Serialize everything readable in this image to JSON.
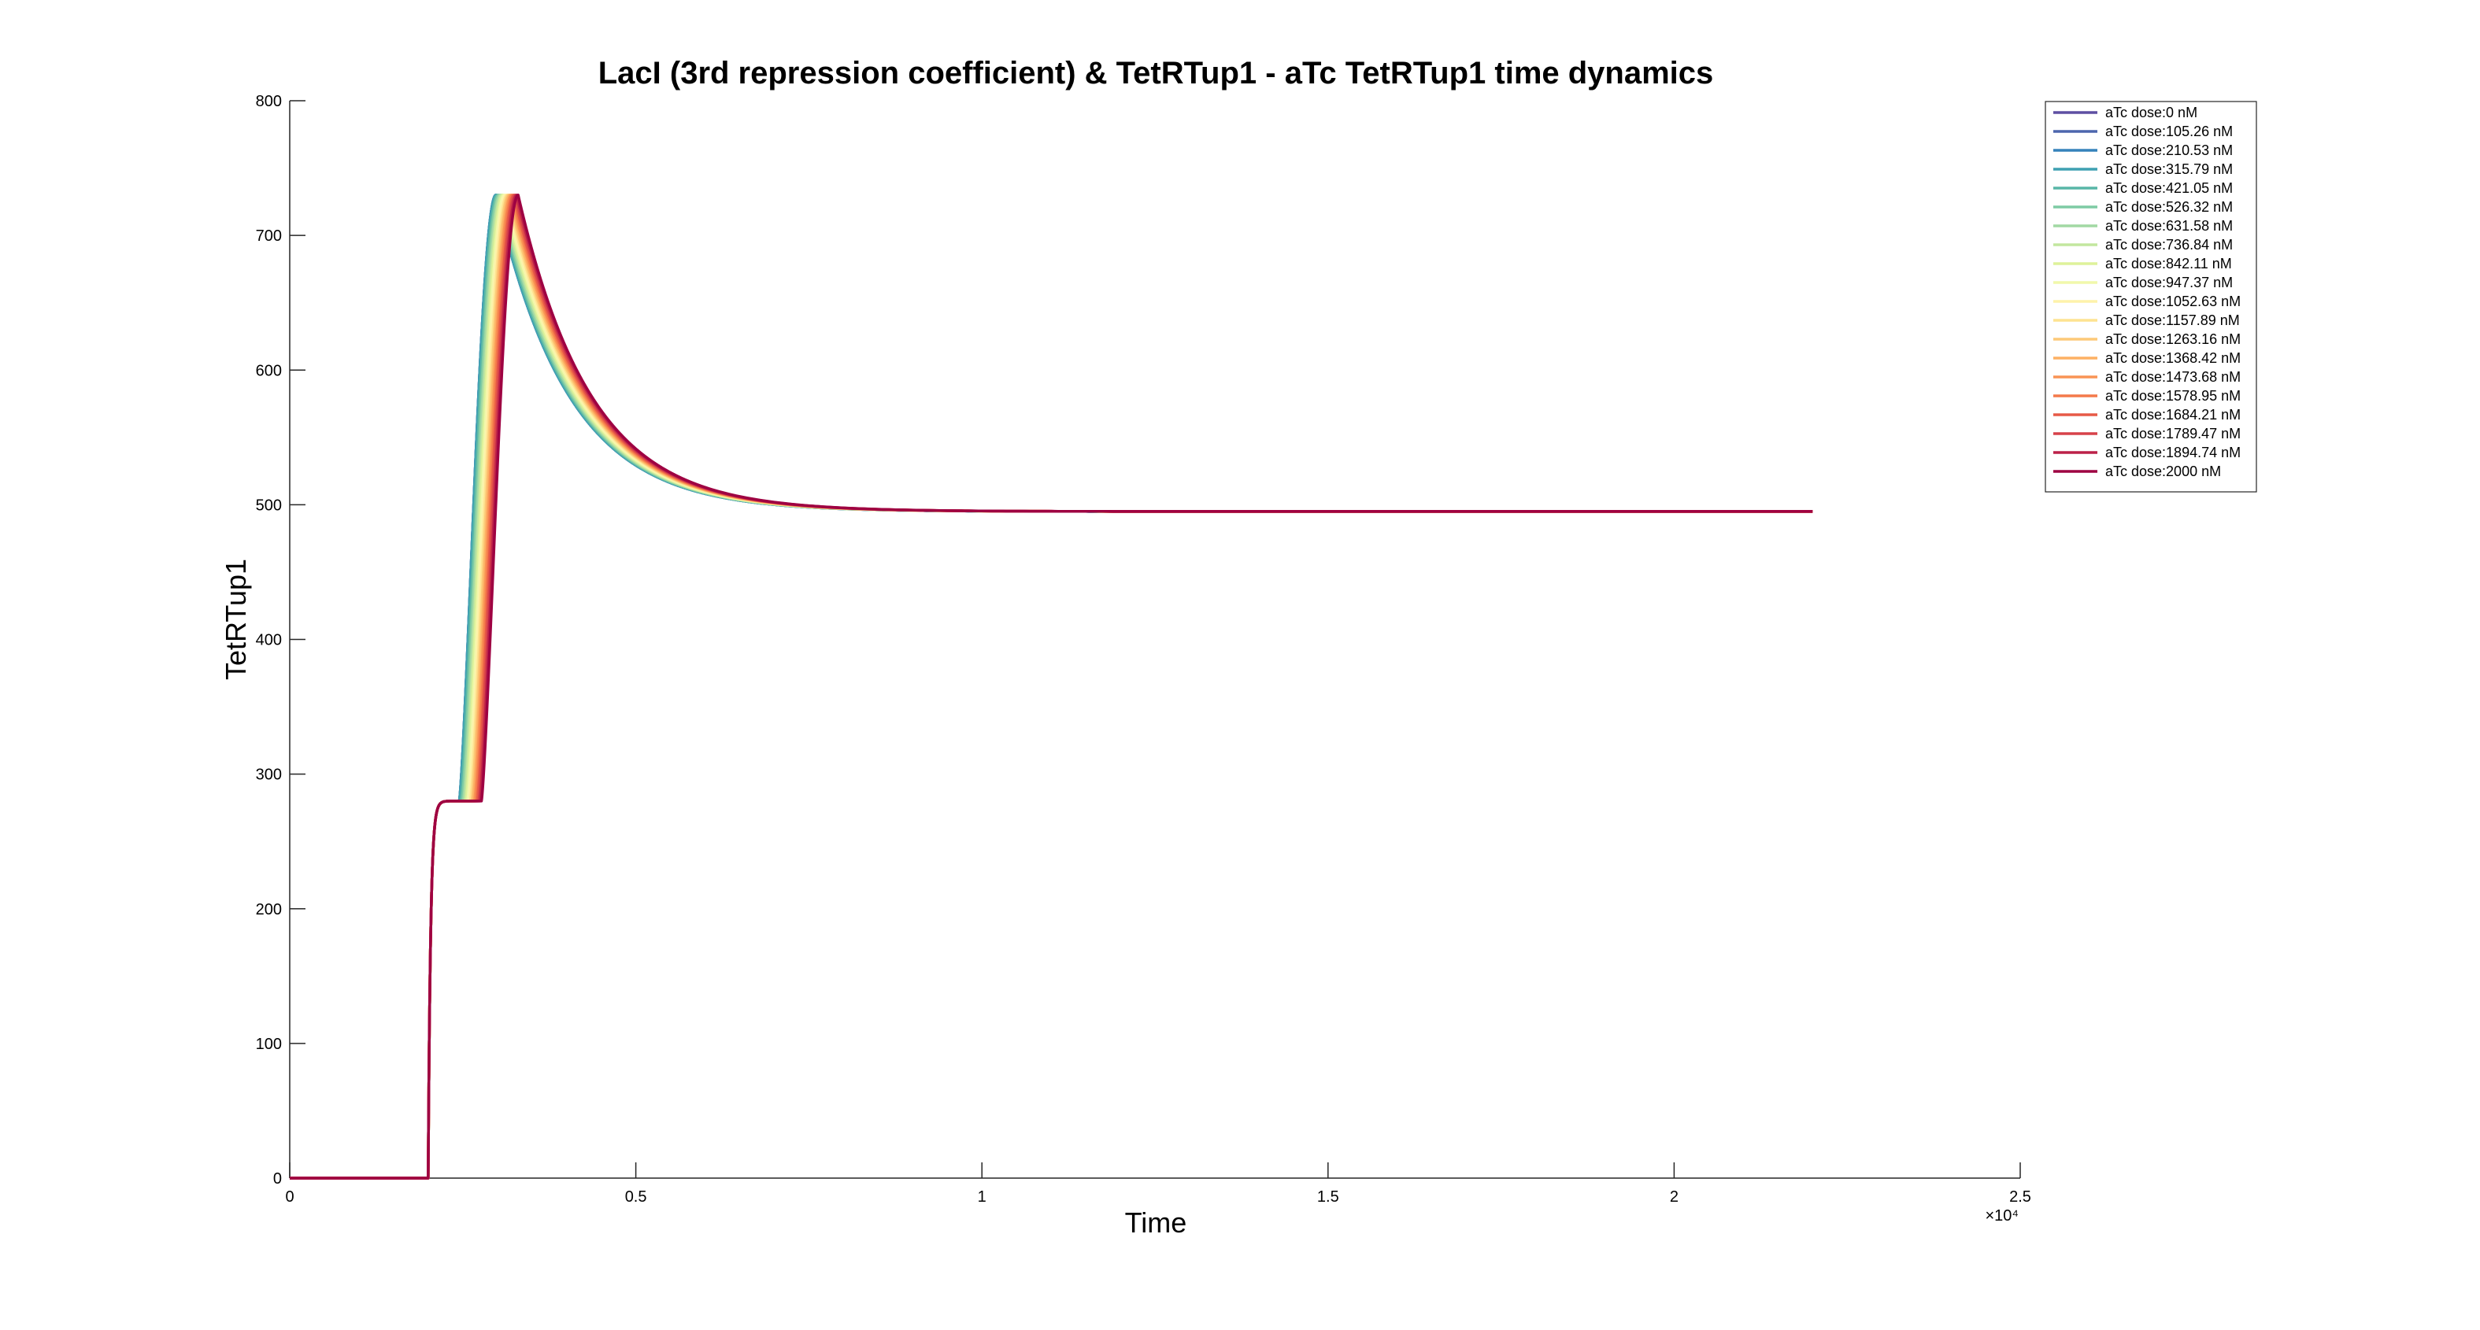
{
  "chart_data": {
    "type": "line",
    "title": "LacI (3rd repression coefficient) & TetRTup1 - aTc TetRTup1 time dynamics",
    "xlabel": "Time",
    "ylabel": "TetRTup1",
    "xlim": [
      0,
      25000
    ],
    "ylim": [
      0,
      800
    ],
    "x_exponent_label": "×10⁴",
    "x_ticks": [
      0,
      5000,
      10000,
      15000,
      20000,
      25000
    ],
    "x_tick_labels": [
      "0",
      "0.5",
      "1",
      "1.5",
      "2",
      "2.5"
    ],
    "y_ticks": [
      0,
      100,
      200,
      300,
      400,
      500,
      600,
      700,
      800
    ],
    "y_tick_labels": [
      "0",
      "100",
      "200",
      "300",
      "400",
      "500",
      "600",
      "700",
      "800"
    ],
    "grid": false,
    "box": false,
    "legend_position": "top-right",
    "x_end": 22000,
    "series": [
      {
        "name": "aTc dose:0 nM",
        "color": "#5e4fa2",
        "shift": 0
      },
      {
        "name": "aTc dose:105.26 nM",
        "color": "#4d66ad",
        "shift": 0
      },
      {
        "name": "aTc dose:210.53 nM",
        "color": "#3683bb",
        "shift": 0
      },
      {
        "name": "aTc dose:315.79 nM",
        "color": "#3fa0b2",
        "shift": 0
      },
      {
        "name": "aTc dose:421.05 nM",
        "color": "#58b6a7",
        "shift": 20
      },
      {
        "name": "aTc dose:526.32 nM",
        "color": "#7ecba4",
        "shift": 40
      },
      {
        "name": "aTc dose:631.58 nM",
        "color": "#a2d9a4",
        "shift": 60
      },
      {
        "name": "aTc dose:736.84 nM",
        "color": "#c3e79f",
        "shift": 80
      },
      {
        "name": "aTc dose:842.11 nM",
        "color": "#def29a",
        "shift": 100
      },
      {
        "name": "aTc dose:947.37 nM",
        "color": "#f1f8ab",
        "shift": 120
      },
      {
        "name": "aTc dose:1052.63 nM",
        "color": "#fef2aa",
        "shift": 140
      },
      {
        "name": "aTc dose:1157.89 nM",
        "color": "#fee391",
        "shift": 160
      },
      {
        "name": "aTc dose:1263.16 nM",
        "color": "#fdc978",
        "shift": 180
      },
      {
        "name": "aTc dose:1368.42 nM",
        "color": "#fdb164",
        "shift": 200
      },
      {
        "name": "aTc dose:1473.68 nM",
        "color": "#f99455",
        "shift": 220
      },
      {
        "name": "aTc dose:1578.95 nM",
        "color": "#f47a4b",
        "shift": 240
      },
      {
        "name": "aTc dose:1684.21 nM",
        "color": "#e75a47",
        "shift": 260
      },
      {
        "name": "aTc dose:1789.47 nM",
        "color": "#d7424a",
        "shift": 280
      },
      {
        "name": "aTc dose:1894.74 nM",
        "color": "#bc2148",
        "shift": 300
      },
      {
        "name": "aTc dose:2000 nM",
        "color": "#9e0142",
        "shift": 320
      }
    ],
    "curve_model": {
      "pre_level": 0,
      "rise_time": 2000,
      "plateau_level": 280,
      "switch_time": 2450,
      "peak_level": 730,
      "peak_time": 2980,
      "steady_state": 495
    }
  }
}
